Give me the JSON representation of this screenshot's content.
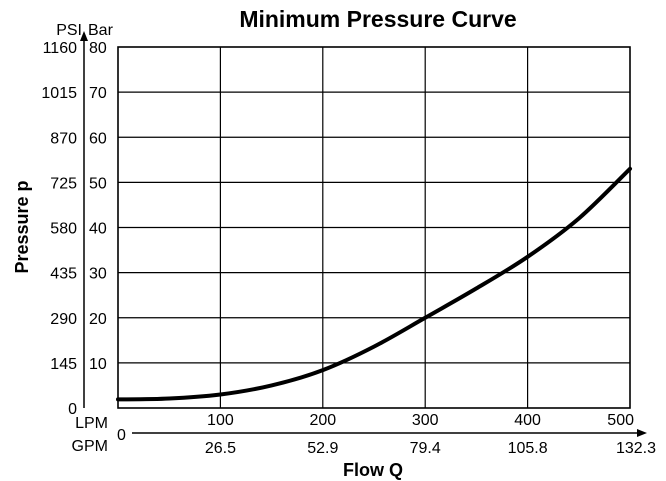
{
  "chart_data": {
    "type": "line",
    "title": "Minimum Pressure Curve",
    "xlabel": "Flow Q",
    "ylabel": "Pressure p",
    "x_axes": [
      {
        "unit": "LPM",
        "ticks": [
          0,
          100,
          200,
          300,
          400,
          500
        ]
      },
      {
        "unit": "GPM",
        "ticks": [
          "0",
          "26.5",
          "52.9",
          "79.4",
          "105.8",
          "132.3"
        ]
      }
    ],
    "y_axes": [
      {
        "unit": "PSI",
        "ticks": [
          "0",
          "145",
          "290",
          "435",
          "580",
          "725",
          "870",
          "1015",
          "1160"
        ]
      },
      {
        "unit": "Bar",
        "ticks": [
          10,
          20,
          30,
          40,
          50,
          60,
          70,
          80
        ]
      }
    ],
    "xlim": [
      0,
      500
    ],
    "ylim": [
      0,
      80
    ],
    "grid": true,
    "series": [
      {
        "x_unit": "LPM",
        "y_unit": "Bar",
        "points": [
          [
            0,
            1.9
          ],
          [
            50,
            2.1
          ],
          [
            100,
            3.0
          ],
          [
            150,
            5.0
          ],
          [
            200,
            8.4
          ],
          [
            250,
            13.6
          ],
          [
            300,
            20.0
          ],
          [
            350,
            26.5
          ],
          [
            400,
            33.5
          ],
          [
            450,
            42.0
          ],
          [
            500,
            53.0
          ]
        ]
      }
    ]
  }
}
